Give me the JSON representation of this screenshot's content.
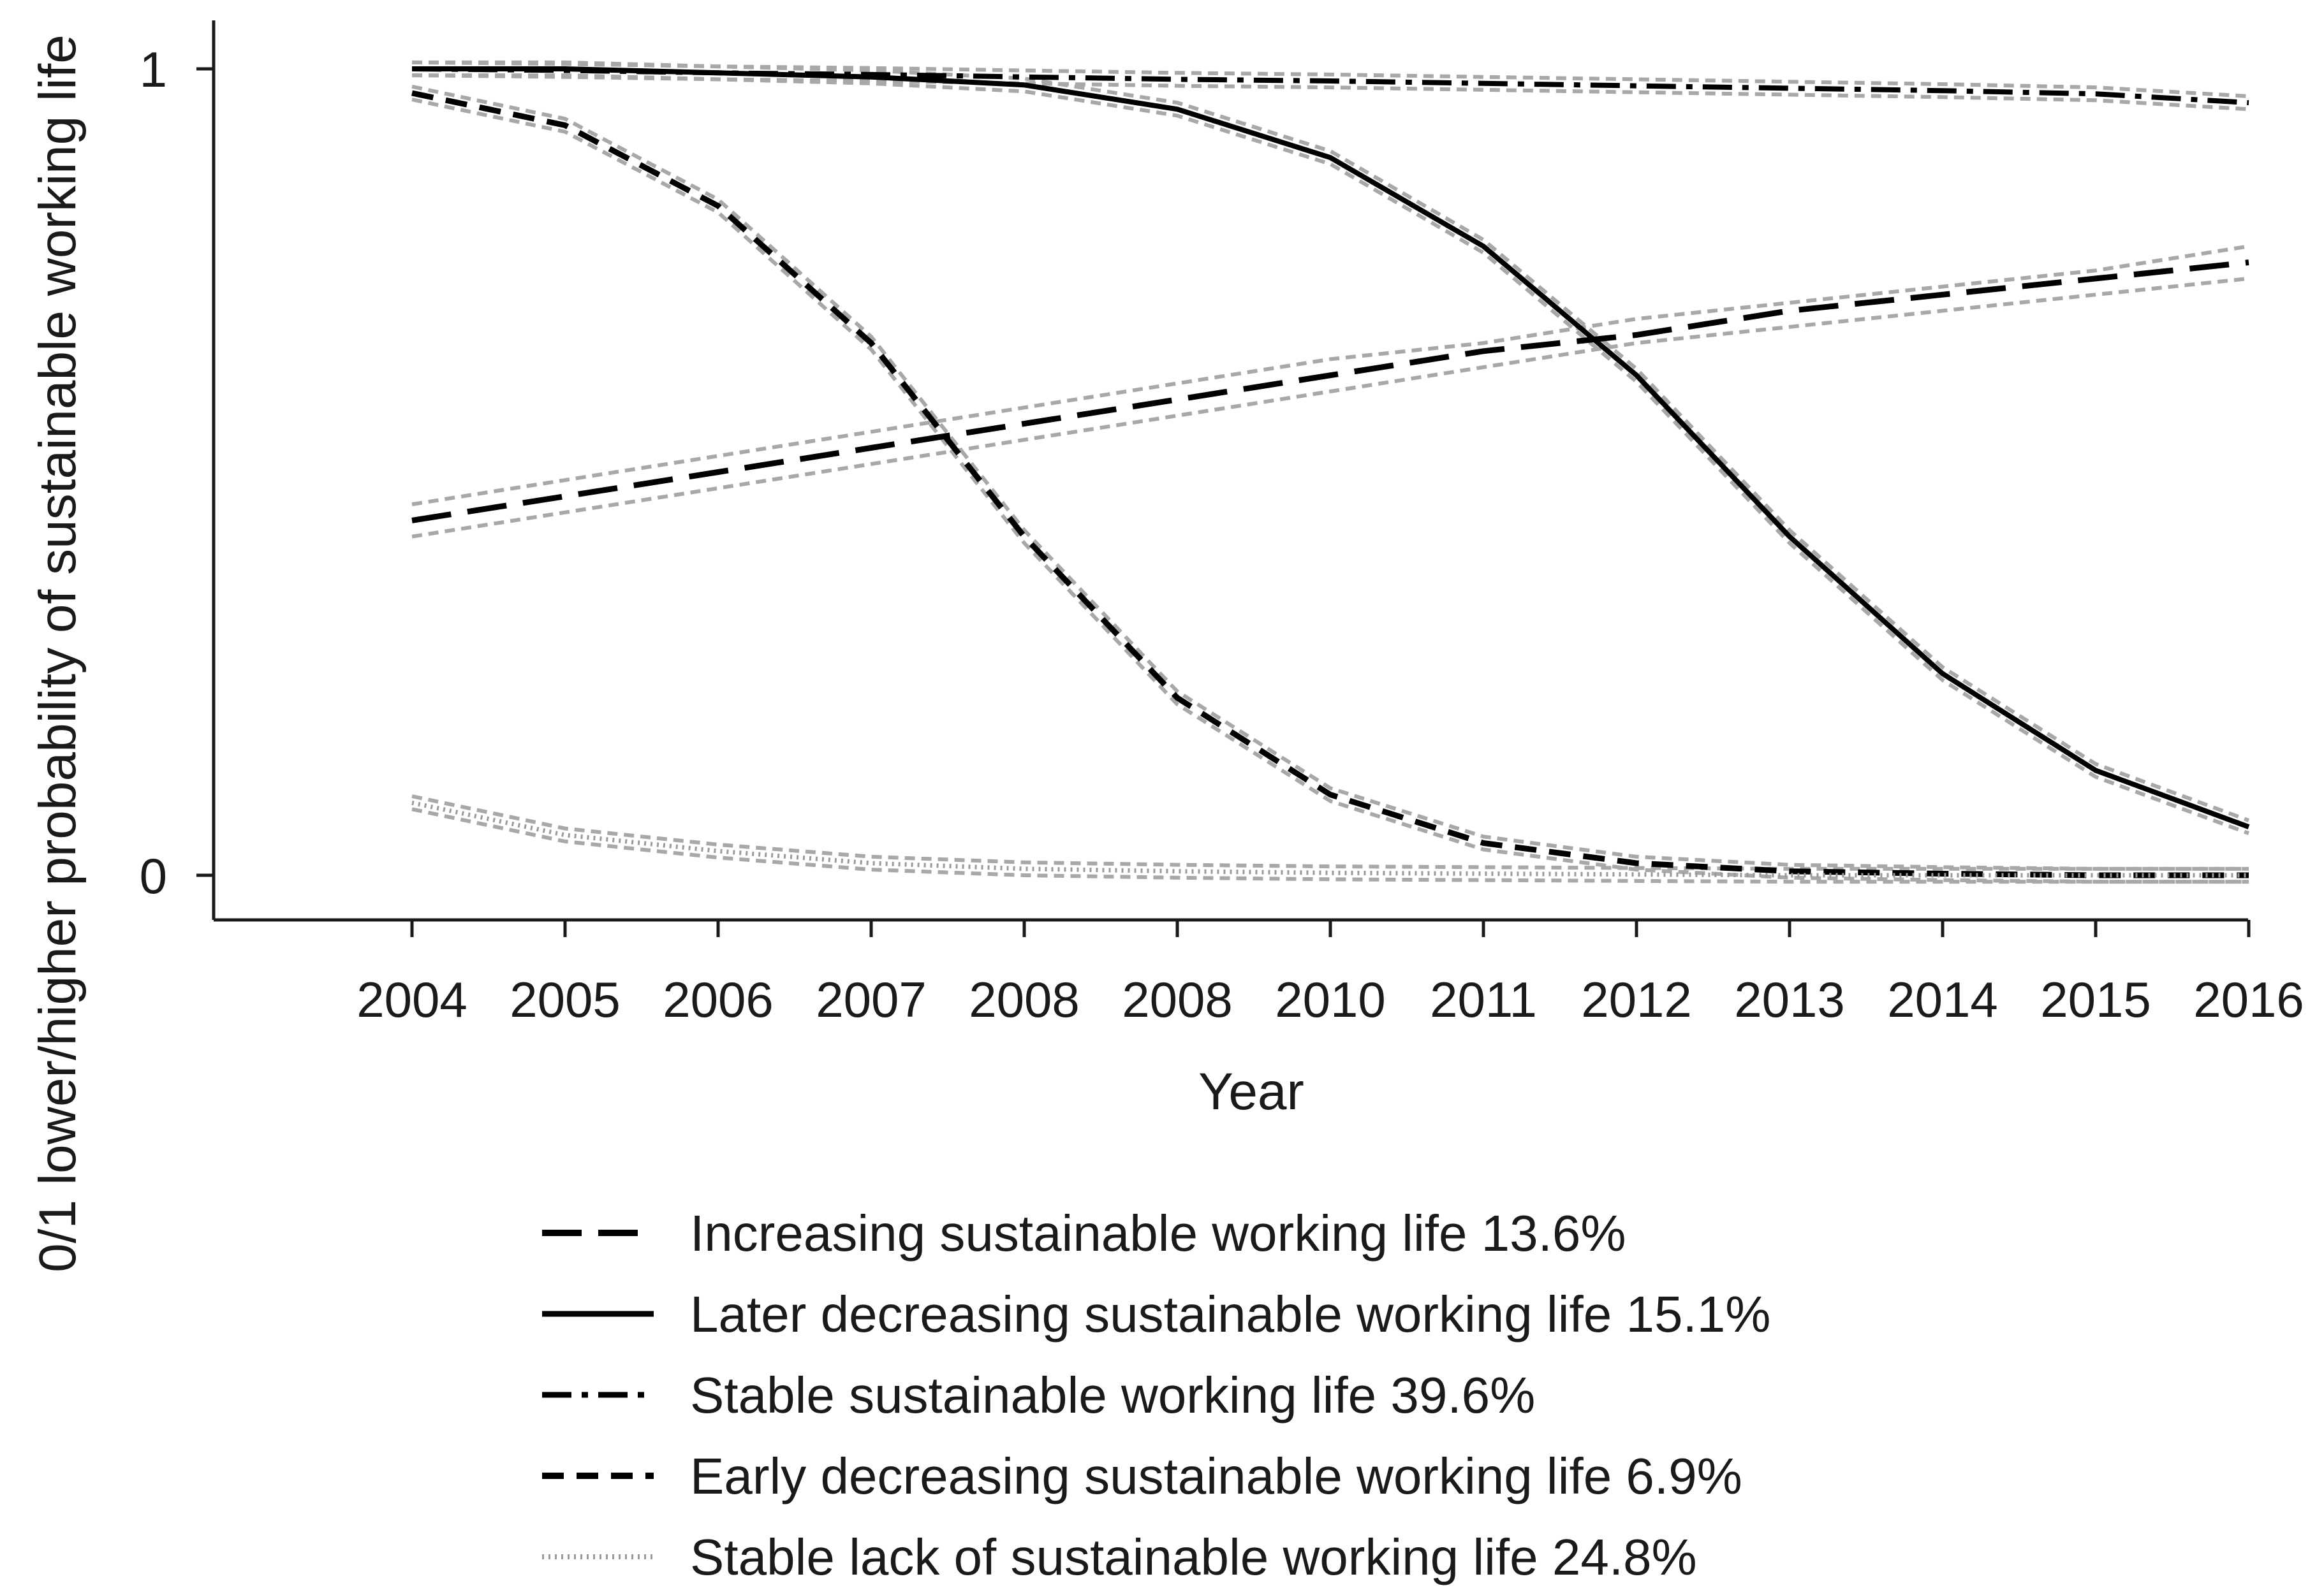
{
  "chart_data": {
    "type": "line",
    "title": "",
    "xlabel": "Year",
    "ylabel": "0/1 lower/higher probability of sustainable working life",
    "x_tick_labels": [
      "2004",
      "2005",
      "2006",
      "2007",
      "2008",
      "2008",
      "2010",
      "2011",
      "2012",
      "2013",
      "2014",
      "2015",
      "2016"
    ],
    "y_tick_labels": [
      "0",
      "1"
    ],
    "ylim": [
      -0.05,
      1.06
    ],
    "yticks": [
      0,
      1
    ],
    "grid": false,
    "legend_position": "bottom",
    "series": [
      {
        "name": "Increasing sustainable working life 13.6%",
        "style": "longdash",
        "values": [
          0.44,
          0.47,
          0.5,
          0.53,
          0.56,
          0.59,
          0.62,
          0.65,
          0.67,
          0.7,
          0.72,
          0.74,
          0.76
        ],
        "ci_lower": [
          0.42,
          0.45,
          0.48,
          0.51,
          0.54,
          0.57,
          0.6,
          0.63,
          0.66,
          0.68,
          0.7,
          0.72,
          0.74
        ],
        "ci_upper": [
          0.46,
          0.49,
          0.52,
          0.55,
          0.58,
          0.61,
          0.64,
          0.66,
          0.69,
          0.71,
          0.73,
          0.75,
          0.78
        ]
      },
      {
        "name": "Later decreasing sustainable working life 15.1%",
        "style": "solid",
        "values": [
          1.0,
          1.0,
          0.995,
          0.99,
          0.98,
          0.95,
          0.89,
          0.78,
          0.62,
          0.42,
          0.25,
          0.13,
          0.06
        ]
      },
      {
        "name": "Stable sustainable working life 39.6%",
        "style": "dashdot",
        "values": [
          1.0,
          0.998,
          0.995,
          0.993,
          0.99,
          0.987,
          0.985,
          0.982,
          0.979,
          0.976,
          0.973,
          0.969,
          0.958
        ]
      },
      {
        "name": "Early decreasing sustainable working life 6.9%",
        "style": "dash",
        "values": [
          0.97,
          0.93,
          0.83,
          0.66,
          0.42,
          0.22,
          0.1,
          0.04,
          0.015,
          0.005,
          0.002,
          0.0,
          0.0
        ]
      },
      {
        "name": "Stable lack of sustainable working life 24.8%",
        "style": "dotted",
        "values": [
          0.09,
          0.05,
          0.03,
          0.015,
          0.008,
          0.005,
          0.003,
          0.002,
          0.001,
          0.0,
          0.0,
          0.0,
          0.0
        ]
      }
    ]
  }
}
